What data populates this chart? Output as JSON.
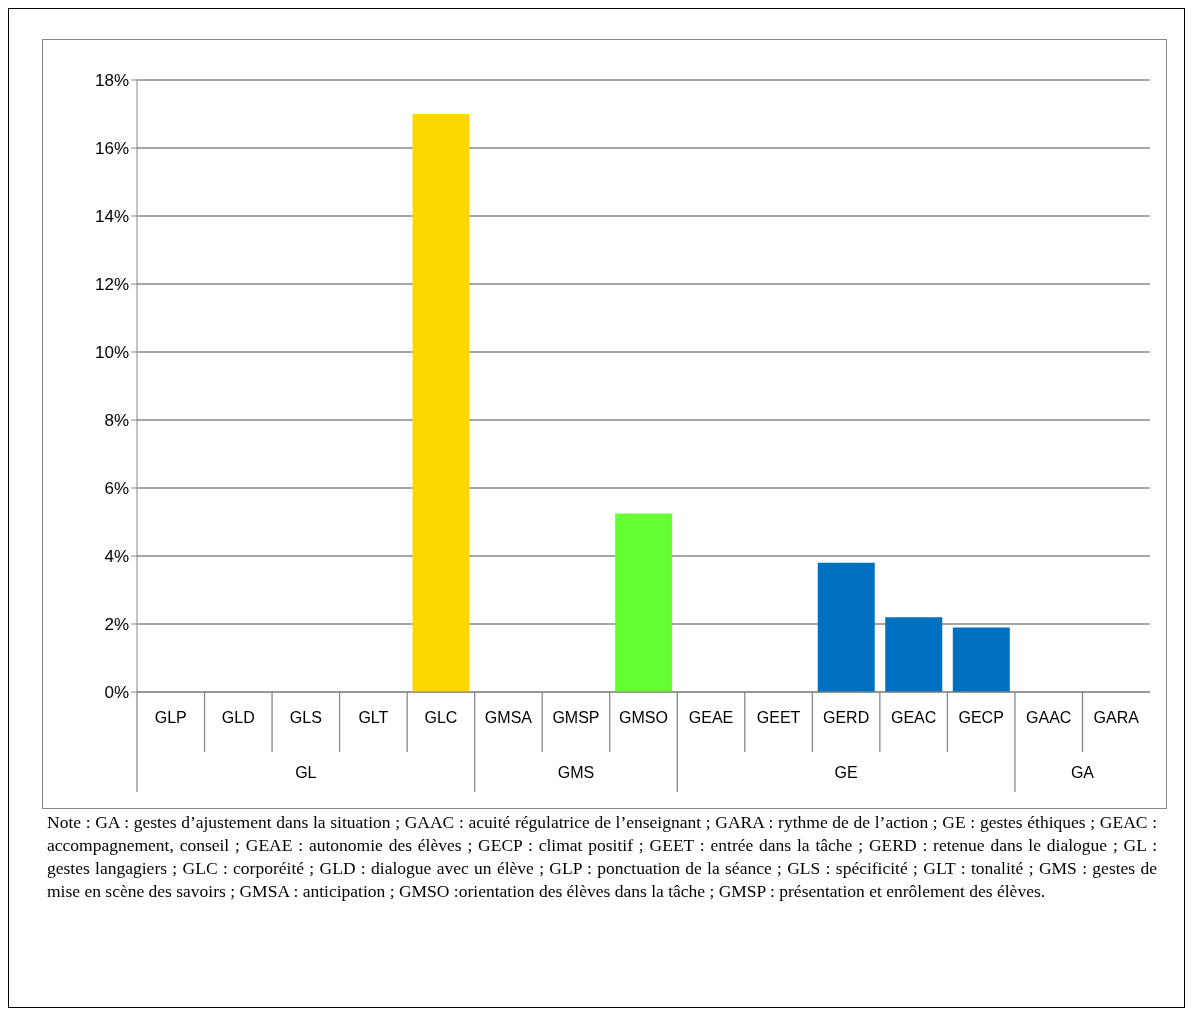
{
  "chart_data": {
    "type": "bar",
    "categories": [
      "GLP",
      "GLD",
      "GLS",
      "GLT",
      "GLC",
      "GMSA",
      "GMSP",
      "GMSO",
      "GEAE",
      "GEET",
      "GERD",
      "GEAC",
      "GECP",
      "GAAC",
      "GARA"
    ],
    "values": [
      0,
      0,
      0,
      0,
      17,
      0,
      0,
      5.25,
      0,
      0,
      3.8,
      2.2,
      1.9,
      0,
      0
    ],
    "colors": [
      "#ffd700",
      "#ffd700",
      "#ffd700",
      "#ffd700",
      "#ffd700",
      "#66ff33",
      "#66ff33",
      "#66ff33",
      "#0070c0",
      "#0070c0",
      "#0070c0",
      "#0070c0",
      "#0070c0",
      "#0070c0",
      "#0070c0"
    ],
    "ylim": [
      0,
      18
    ],
    "yticks": [
      {
        "value": 0,
        "label": "0%"
      },
      {
        "value": 2,
        "label": "2%"
      },
      {
        "value": 4,
        "label": "4%"
      },
      {
        "value": 6,
        "label": "6%"
      },
      {
        "value": 8,
        "label": "8%"
      },
      {
        "value": 10,
        "label": "10%"
      },
      {
        "value": 12,
        "label": "12%"
      },
      {
        "value": 14,
        "label": "14%"
      },
      {
        "value": 16,
        "label": "16%"
      },
      {
        "value": 18,
        "label": "18%"
      }
    ],
    "grid": "y",
    "annotations": [
      "GL",
      "GMS",
      "GE",
      "GA",
      "Note : GA : gestes d’ajustement dans la situation ; GAAC : acuité régulatrice de l’enseignant ; GARA : rythme de de l’action ; GE : gestes éthiques ;  GEAC : accompagnement, conseil ; GEAE : autonomie des élèves ; GECP : climat positif ; GEET : entrée dans la tâche ; GERD : retenue dans le dialogue ; GL : gestes langagiers ; GLC : corporéité ;  GLD : dialogue avec un élève ; GLP : ponctuation de la séance ; GLS : spécificité ; GLT : tonalité ; GMS : gestes de mise en scène des savoirs ; GMSA : anticipation ; GMSO :orientation des élèves dans la tâche ; GMSP : présentation et enrôlement des élèves."
    ]
  }
}
